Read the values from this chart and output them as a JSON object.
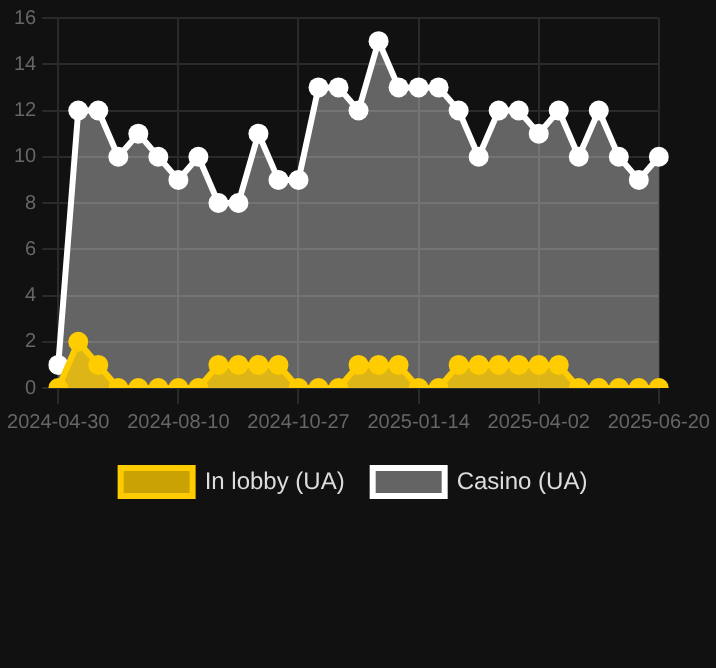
{
  "chart_data": {
    "type": "area",
    "categories": [
      "2024-04-30",
      null,
      null,
      null,
      null,
      null,
      "2024-08-10",
      null,
      null,
      null,
      null,
      null,
      "2024-10-27",
      null,
      null,
      null,
      null,
      null,
      "2025-01-14",
      null,
      null,
      null,
      null,
      null,
      "2025-04-02",
      null,
      null,
      null,
      null,
      null,
      "2025-06-20"
    ],
    "series": [
      {
        "name": "In lobby (UA)",
        "color": "#ffcc00",
        "values": [
          0,
          2,
          1,
          0,
          0,
          0,
          0,
          0,
          1,
          1,
          1,
          1,
          0,
          0,
          0,
          1,
          1,
          1,
          0,
          0,
          1,
          1,
          1,
          1,
          1,
          1,
          0,
          0,
          0,
          0,
          0
        ]
      },
      {
        "name": "Casino (UA)",
        "color": "#ffffff",
        "values": [
          1,
          12,
          12,
          10,
          11,
          10,
          9,
          10,
          8,
          8,
          11,
          9,
          9,
          13,
          13,
          12,
          15,
          13,
          13,
          13,
          12,
          10,
          12,
          12,
          11,
          12,
          10,
          12,
          10,
          9,
          10
        ]
      }
    ],
    "ylim": [
      0,
      16
    ],
    "yticks": [
      0,
      2,
      4,
      6,
      8,
      10,
      12,
      14,
      16
    ],
    "grid": true,
    "legend": "bottom",
    "marker": "circle"
  }
}
